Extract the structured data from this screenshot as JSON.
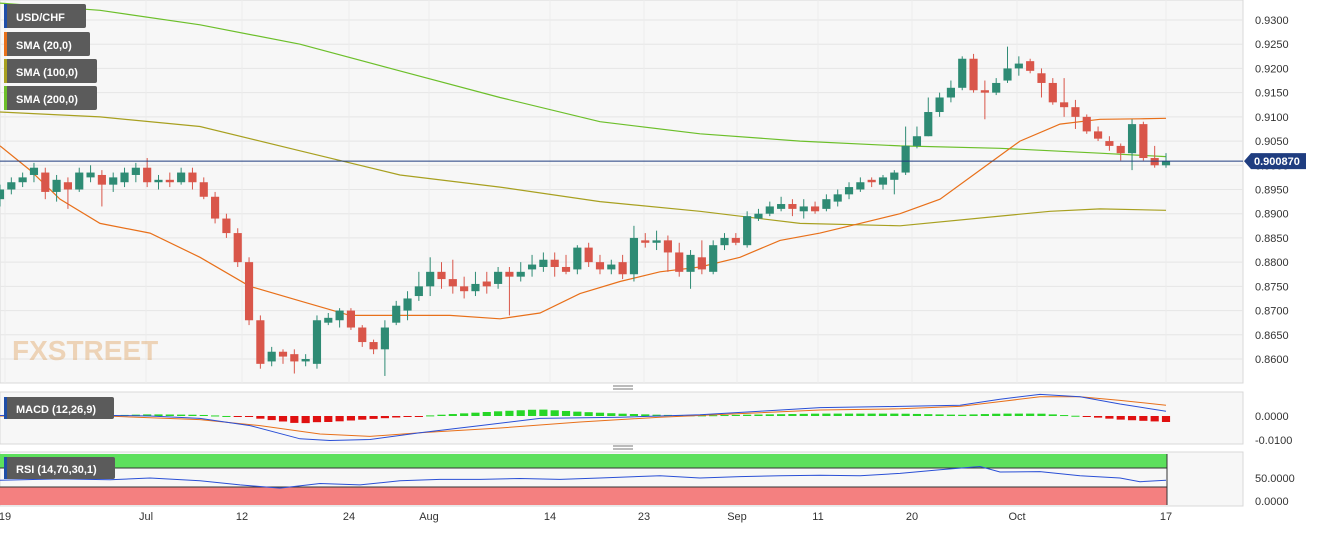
{
  "chart_data": [
    {
      "type": "candlestick",
      "symbol": "USD/CHF",
      "price_axis": {
        "ticks": [
          "0.9300",
          "0.9250",
          "0.9200",
          "0.9150",
          "0.9100",
          "0.9050",
          "0.9000",
          "0.8950",
          "0.8900",
          "0.8850",
          "0.8800",
          "0.8750",
          "0.8700",
          "0.8650",
          "0.8600"
        ],
        "range": [
          0.8555,
          0.932
        ]
      },
      "date_axis": {
        "ticks": [
          "19",
          "Jul",
          "12",
          "24",
          "Aug",
          "14",
          "23",
          "Sep",
          "11",
          "20",
          "Oct",
          "17"
        ]
      },
      "current_price": "0.900870",
      "legend": [
        {
          "label": "USD/CHF",
          "color": "#1f4ea8"
        },
        {
          "label": "SMA (20,0)",
          "color": "#e8701a"
        },
        {
          "label": "SMA (100,0)",
          "color": "#a8a020"
        },
        {
          "label": "SMA (200,0)",
          "color": "#6cbf2a"
        }
      ],
      "colors": {
        "up": "#2e8b74",
        "down": "#d9564a",
        "sma20": "#e8701a",
        "sma100": "#a8a020",
        "sma200": "#6cbf2a",
        "price_line": "#1f3d80"
      },
      "candles": [
        [
          0.893,
          0.895,
          0.8915,
          0.896
        ],
        [
          0.895,
          0.8965,
          0.894,
          0.8975
        ],
        [
          0.8965,
          0.8975,
          0.8955,
          0.8985
        ],
        [
          0.898,
          0.8995,
          0.8965,
          0.9005
        ],
        [
          0.8985,
          0.8945,
          0.893,
          0.8995
        ],
        [
          0.8945,
          0.897,
          0.8925,
          0.898
        ],
        [
          0.8965,
          0.895,
          0.891,
          0.8975
        ],
        [
          0.895,
          0.8985,
          0.8945,
          0.8995
        ],
        [
          0.8975,
          0.8985,
          0.8965,
          0.9
        ],
        [
          0.898,
          0.896,
          0.8915,
          0.899
        ],
        [
          0.896,
          0.8975,
          0.8945,
          0.8985
        ],
        [
          0.8965,
          0.8985,
          0.8955,
          0.8995
        ],
        [
          0.898,
          0.8995,
          0.8965,
          0.9005
        ],
        [
          0.8995,
          0.8965,
          0.8955,
          0.9015
        ],
        [
          0.8965,
          0.897,
          0.895,
          0.898
        ],
        [
          0.897,
          0.8965,
          0.8955,
          0.8985
        ],
        [
          0.8965,
          0.8985,
          0.896,
          0.8995
        ],
        [
          0.8985,
          0.8965,
          0.895,
          0.8995
        ],
        [
          0.8965,
          0.8935,
          0.893,
          0.8975
        ],
        [
          0.8935,
          0.889,
          0.888,
          0.8945
        ],
        [
          0.889,
          0.886,
          0.885,
          0.89
        ],
        [
          0.886,
          0.88,
          0.879,
          0.887
        ],
        [
          0.88,
          0.868,
          0.867,
          0.881
        ],
        [
          0.868,
          0.859,
          0.858,
          0.869
        ],
        [
          0.8595,
          0.8615,
          0.8585,
          0.8625
        ],
        [
          0.8615,
          0.8605,
          0.859,
          0.862
        ],
        [
          0.861,
          0.8595,
          0.857,
          0.862
        ],
        [
          0.8595,
          0.86,
          0.8585,
          0.861
        ],
        [
          0.859,
          0.868,
          0.858,
          0.869
        ],
        [
          0.8675,
          0.8685,
          0.867,
          0.8695
        ],
        [
          0.868,
          0.87,
          0.8665,
          0.8705
        ],
        [
          0.87,
          0.8665,
          0.866,
          0.8705
        ],
        [
          0.8665,
          0.8635,
          0.8625,
          0.867
        ],
        [
          0.8635,
          0.862,
          0.861,
          0.864
        ],
        [
          0.862,
          0.8665,
          0.8565,
          0.868
        ],
        [
          0.8675,
          0.871,
          0.867,
          0.872
        ],
        [
          0.87,
          0.8725,
          0.868,
          0.874
        ],
        [
          0.873,
          0.875,
          0.872,
          0.878
        ],
        [
          0.875,
          0.878,
          0.873,
          0.881
        ],
        [
          0.878,
          0.8765,
          0.8745,
          0.88
        ],
        [
          0.8765,
          0.875,
          0.8735,
          0.8805
        ],
        [
          0.875,
          0.874,
          0.8725,
          0.877
        ],
        [
          0.874,
          0.8755,
          0.873,
          0.878
        ],
        [
          0.876,
          0.875,
          0.8735,
          0.878
        ],
        [
          0.8755,
          0.878,
          0.8745,
          0.879
        ],
        [
          0.878,
          0.877,
          0.869,
          0.879
        ],
        [
          0.877,
          0.878,
          0.876,
          0.88
        ],
        [
          0.8785,
          0.8795,
          0.877,
          0.8815
        ],
        [
          0.879,
          0.8805,
          0.878,
          0.882
        ],
        [
          0.8805,
          0.879,
          0.877,
          0.882
        ],
        [
          0.879,
          0.878,
          0.8775,
          0.8815
        ],
        [
          0.8785,
          0.883,
          0.8775,
          0.8835
        ],
        [
          0.883,
          0.88,
          0.879,
          0.884
        ],
        [
          0.88,
          0.8785,
          0.8775,
          0.8815
        ],
        [
          0.8785,
          0.8795,
          0.8775,
          0.8805
        ],
        [
          0.88,
          0.8775,
          0.8765,
          0.8815
        ],
        [
          0.8775,
          0.885,
          0.876,
          0.8875
        ],
        [
          0.8845,
          0.884,
          0.883,
          0.886
        ],
        [
          0.884,
          0.8845,
          0.8825,
          0.8865
        ],
        [
          0.8845,
          0.882,
          0.878,
          0.8855
        ],
        [
          0.882,
          0.878,
          0.877,
          0.884
        ],
        [
          0.878,
          0.8815,
          0.8745,
          0.8825
        ],
        [
          0.881,
          0.8785,
          0.8775,
          0.8845
        ],
        [
          0.878,
          0.8835,
          0.8775,
          0.8845
        ],
        [
          0.8835,
          0.885,
          0.8825,
          0.886
        ],
        [
          0.885,
          0.884,
          0.8835,
          0.886
        ],
        [
          0.8835,
          0.8895,
          0.883,
          0.8905
        ],
        [
          0.889,
          0.89,
          0.8885,
          0.891
        ],
        [
          0.89,
          0.8915,
          0.8895,
          0.8925
        ],
        [
          0.891,
          0.892,
          0.8905,
          0.8935
        ],
        [
          0.892,
          0.891,
          0.8895,
          0.893
        ],
        [
          0.8905,
          0.8915,
          0.889,
          0.893
        ],
        [
          0.8915,
          0.8905,
          0.89,
          0.8925
        ],
        [
          0.891,
          0.893,
          0.8905,
          0.894
        ],
        [
          0.8925,
          0.894,
          0.8915,
          0.895
        ],
        [
          0.894,
          0.8955,
          0.893,
          0.8965
        ],
        [
          0.895,
          0.8965,
          0.8945,
          0.8975
        ],
        [
          0.897,
          0.8965,
          0.8955,
          0.8975
        ],
        [
          0.896,
          0.8975,
          0.895,
          0.898
        ],
        [
          0.897,
          0.8985,
          0.894,
          0.899
        ],
        [
          0.8985,
          0.904,
          0.898,
          0.908
        ],
        [
          0.904,
          0.906,
          0.9035,
          0.908
        ],
        [
          0.906,
          0.911,
          0.906,
          0.914
        ],
        [
          0.911,
          0.914,
          0.91,
          0.915
        ],
        [
          0.914,
          0.916,
          0.913,
          0.9175
        ],
        [
          0.916,
          0.922,
          0.9155,
          0.9225
        ],
        [
          0.922,
          0.9155,
          0.915,
          0.923
        ],
        [
          0.9155,
          0.915,
          0.9095,
          0.9175
        ],
        [
          0.915,
          0.917,
          0.9145,
          0.918
        ],
        [
          0.9175,
          0.92,
          0.917,
          0.9245
        ],
        [
          0.92,
          0.921,
          0.9185,
          0.9225
        ],
        [
          0.9215,
          0.9195,
          0.919,
          0.922
        ],
        [
          0.919,
          0.917,
          0.914,
          0.92
        ],
        [
          0.917,
          0.913,
          0.9125,
          0.918
        ],
        [
          0.913,
          0.912,
          0.91,
          0.918
        ],
        [
          0.912,
          0.91,
          0.9075,
          0.9135
        ],
        [
          0.91,
          0.907,
          0.9065,
          0.9105
        ],
        [
          0.907,
          0.9055,
          0.905,
          0.908
        ],
        [
          0.905,
          0.904,
          0.903,
          0.906
        ],
        [
          0.904,
          0.9025,
          0.901,
          0.9045
        ],
        [
          0.9025,
          0.9085,
          0.899,
          0.9095
        ],
        [
          0.9085,
          0.9015,
          0.901,
          0.909
        ],
        [
          0.9015,
          0.9,
          0.8995,
          0.904
        ],
        [
          0.9,
          0.9009,
          0.8995,
          0.9025
        ]
      ],
      "sma20": [
        [
          0,
          0.904
        ],
        [
          30,
          0.899
        ],
        [
          60,
          0.893
        ],
        [
          100,
          0.888
        ],
        [
          150,
          0.886
        ],
        [
          200,
          0.881
        ],
        [
          250,
          0.875
        ],
        [
          300,
          0.872
        ],
        [
          350,
          0.869
        ],
        [
          400,
          0.869
        ],
        [
          450,
          0.869
        ],
        [
          500,
          0.8683
        ],
        [
          540,
          0.8695
        ],
        [
          580,
          0.8735
        ],
        [
          620,
          0.876
        ],
        [
          660,
          0.878
        ],
        [
          700,
          0.879
        ],
        [
          740,
          0.881
        ],
        [
          780,
          0.8845
        ],
        [
          820,
          0.886
        ],
        [
          860,
          0.888
        ],
        [
          900,
          0.89
        ],
        [
          940,
          0.893
        ],
        [
          980,
          0.899
        ],
        [
          1020,
          0.905
        ],
        [
          1060,
          0.9085
        ],
        [
          1100,
          0.9095
        ],
        [
          1140,
          0.9096
        ],
        [
          1166,
          0.9097
        ]
      ],
      "sma100": [
        [
          0,
          0.911
        ],
        [
          100,
          0.91
        ],
        [
          200,
          0.908
        ],
        [
          300,
          0.903
        ],
        [
          400,
          0.898
        ],
        [
          500,
          0.8955
        ],
        [
          600,
          0.8925
        ],
        [
          700,
          0.8905
        ],
        [
          800,
          0.888
        ],
        [
          900,
          0.8875
        ],
        [
          1000,
          0.8895
        ],
        [
          1050,
          0.8905
        ],
        [
          1100,
          0.891
        ],
        [
          1166,
          0.8907
        ]
      ],
      "sma200": [
        [
          0,
          0.9335
        ],
        [
          100,
          0.932
        ],
        [
          200,
          0.929
        ],
        [
          300,
          0.925
        ],
        [
          400,
          0.9195
        ],
        [
          500,
          0.914
        ],
        [
          600,
          0.909
        ],
        [
          700,
          0.9065
        ],
        [
          800,
          0.905
        ],
        [
          900,
          0.904
        ],
        [
          1000,
          0.9035
        ],
        [
          1100,
          0.9025
        ],
        [
          1166,
          0.9018
        ]
      ]
    },
    {
      "type": "line",
      "indicator": "MACD (12,26,9)",
      "y_ticks": [
        "0.0000",
        "-0.0100"
      ],
      "macd_line": [
        [
          0,
          0.0002
        ],
        [
          50,
          0.0005
        ],
        [
          100,
          0.0003
        ],
        [
          150,
          0.0
        ],
        [
          200,
          -0.001
        ],
        [
          250,
          -0.004
        ],
        [
          300,
          -0.0095
        ],
        [
          330,
          -0.0102
        ],
        [
          370,
          -0.0098
        ],
        [
          420,
          -0.007
        ],
        [
          480,
          -0.004
        ],
        [
          540,
          -0.001
        ],
        [
          620,
          -0.0005
        ],
        [
          700,
          0.0005
        ],
        [
          760,
          0.002
        ],
        [
          820,
          0.0035
        ],
        [
          900,
          0.004
        ],
        [
          960,
          0.0045
        ],
        [
          1000,
          0.007
        ],
        [
          1040,
          0.009
        ],
        [
          1080,
          0.008
        ],
        [
          1120,
          0.005
        ],
        [
          1166,
          0.002
        ]
      ],
      "signal_line": [
        [
          0,
          0.0
        ],
        [
          100,
          0.0001
        ],
        [
          200,
          -0.0015
        ],
        [
          260,
          -0.004
        ],
        [
          320,
          -0.0075
        ],
        [
          370,
          -0.0085
        ],
        [
          420,
          -0.007
        ],
        [
          500,
          -0.005
        ],
        [
          580,
          -0.0025
        ],
        [
          660,
          -0.0005
        ],
        [
          740,
          0.001
        ],
        [
          820,
          0.0025
        ],
        [
          900,
          0.003
        ],
        [
          960,
          0.004
        ],
        [
          1000,
          0.006
        ],
        [
          1040,
          0.008
        ],
        [
          1080,
          0.008
        ],
        [
          1120,
          0.0065
        ],
        [
          1166,
          0.0045
        ]
      ]
    },
    {
      "type": "line",
      "indicator": "RSI (14,70,30,1)",
      "y_ticks": [
        "50.0000",
        "0.0000"
      ],
      "rsi_line": [
        [
          0,
          45
        ],
        [
          60,
          48
        ],
        [
          110,
          46
        ],
        [
          150,
          50
        ],
        [
          200,
          44
        ],
        [
          240,
          35
        ],
        [
          280,
          28
        ],
        [
          320,
          38
        ],
        [
          360,
          35
        ],
        [
          400,
          44
        ],
        [
          440,
          47
        ],
        [
          480,
          47
        ],
        [
          520,
          49
        ],
        [
          560,
          47
        ],
        [
          600,
          50
        ],
        [
          660,
          55
        ],
        [
          700,
          50
        ],
        [
          740,
          53
        ],
        [
          780,
          55
        ],
        [
          820,
          56
        ],
        [
          860,
          55
        ],
        [
          900,
          60
        ],
        [
          940,
          68
        ],
        [
          980,
          75
        ],
        [
          1000,
          63
        ],
        [
          1040,
          64
        ],
        [
          1080,
          55
        ],
        [
          1120,
          50
        ],
        [
          1140,
          42
        ],
        [
          1166,
          45
        ]
      ]
    }
  ]
}
